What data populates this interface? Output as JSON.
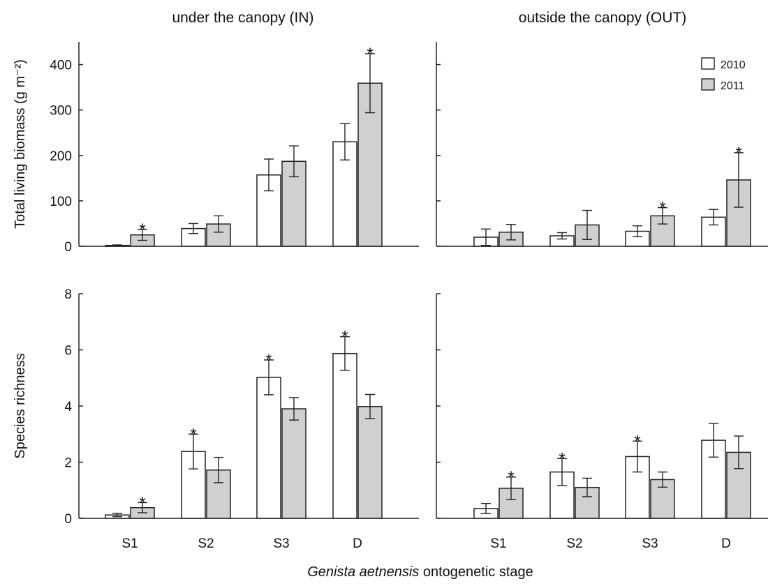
{
  "figure": {
    "xlabel_italic": "Genista aetnensis",
    "xlabel_rest": " ontogenetic stage",
    "legend": [
      {
        "label": "2010",
        "color": "#ffffff"
      },
      {
        "label": "2011",
        "color": "#d0d0d0"
      }
    ],
    "column_titles": [
      "under the canopy (IN)",
      "outside the canopy (OUT)"
    ],
    "row_ylabels": [
      "Total living biomass (g m⁻²)",
      "Species richness"
    ]
  },
  "chart_data": [
    {
      "type": "bar",
      "title": "under the canopy (IN)",
      "ylabel": "Total living biomass (g m⁻²)",
      "categories": [
        "S1",
        "S2",
        "S3",
        "D"
      ],
      "ylim": [
        0,
        450
      ],
      "yticks": [
        0,
        100,
        200,
        300,
        400
      ],
      "series": [
        {
          "name": "2010",
          "values": [
            2,
            39,
            157,
            230
          ],
          "errors": [
            1,
            11,
            35,
            40
          ],
          "stars": [
            false,
            false,
            false,
            false
          ]
        },
        {
          "name": "2011",
          "values": [
            25,
            49,
            187,
            359
          ],
          "errors": [
            12,
            18,
            34,
            65
          ],
          "stars": [
            true,
            false,
            false,
            true
          ]
        }
      ]
    },
    {
      "type": "bar",
      "title": "outside the canopy (OUT)",
      "ylabel": "",
      "categories": [
        "S1",
        "S2",
        "S3",
        "D"
      ],
      "ylim": [
        0,
        450
      ],
      "yticks": [
        0,
        100,
        200,
        300,
        400
      ],
      "series": [
        {
          "name": "2010",
          "values": [
            20,
            23,
            33,
            64
          ],
          "errors": [
            18,
            7,
            12,
            17
          ],
          "stars": [
            false,
            false,
            false,
            false
          ]
        },
        {
          "name": "2011",
          "values": [
            31,
            47,
            67,
            146
          ],
          "errors": [
            17,
            32,
            18,
            60
          ],
          "stars": [
            false,
            false,
            true,
            true
          ]
        }
      ]
    },
    {
      "type": "bar",
      "title": "",
      "ylabel": "Species richness",
      "categories": [
        "S1",
        "S2",
        "S3",
        "D"
      ],
      "ylim": [
        0,
        8
      ],
      "yticks": [
        0,
        2,
        4,
        6,
        8
      ],
      "series": [
        {
          "name": "2010",
          "values": [
            0.12,
            2.38,
            5.02,
            5.87
          ],
          "errors": [
            0.06,
            0.62,
            0.62,
            0.6
          ],
          "stars": [
            false,
            true,
            true,
            true
          ]
        },
        {
          "name": "2011",
          "values": [
            0.38,
            1.72,
            3.9,
            3.98
          ],
          "errors": [
            0.18,
            0.45,
            0.4,
            0.43
          ],
          "stars": [
            true,
            false,
            false,
            false
          ]
        }
      ]
    },
    {
      "type": "bar",
      "title": "",
      "ylabel": "",
      "categories": [
        "S1",
        "S2",
        "S3",
        "D"
      ],
      "ylim": [
        0,
        8
      ],
      "yticks": [
        0,
        2,
        4,
        6,
        8
      ],
      "series": [
        {
          "name": "2010",
          "values": [
            0.35,
            1.65,
            2.2,
            2.78
          ],
          "errors": [
            0.18,
            0.48,
            0.55,
            0.6
          ],
          "stars": [
            false,
            true,
            true,
            false
          ]
        },
        {
          "name": "2011",
          "values": [
            1.07,
            1.1,
            1.38,
            2.35
          ],
          "errors": [
            0.4,
            0.33,
            0.27,
            0.58
          ],
          "stars": [
            true,
            false,
            false,
            false
          ]
        }
      ]
    }
  ]
}
